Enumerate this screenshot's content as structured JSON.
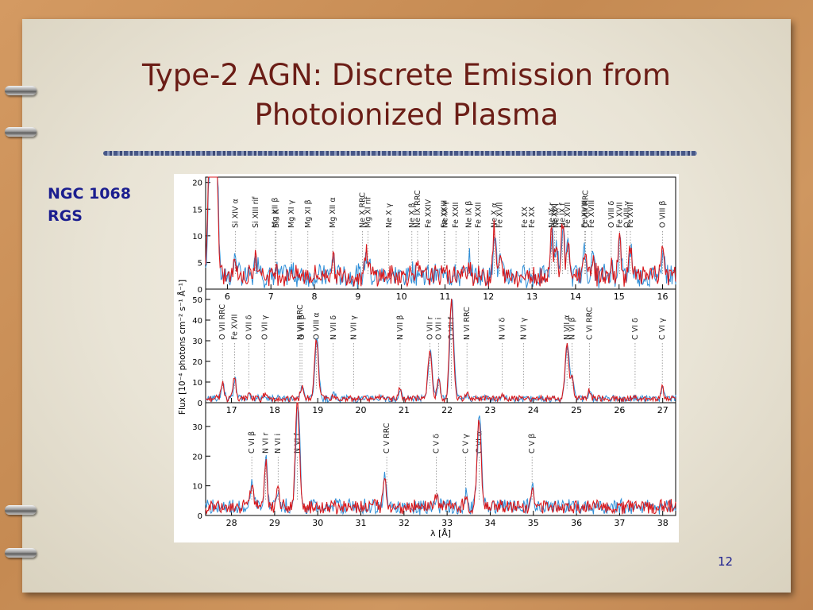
{
  "slide": {
    "title_line1": "Type-2 AGN: Discrete Emission from",
    "title_line2": "Photoionized Plasma",
    "label_line1": "NGC 1068",
    "label_line2": "RGS",
    "page_number": "12"
  },
  "colors": {
    "series_a": "#d8181c",
    "series_b": "#2f8fd8",
    "title": "#6b1d16",
    "label": "#1b1e8f"
  },
  "chart_data": {
    "type": "line",
    "ylabel": "Flux [10⁻⁴ photons cm⁻² s⁻¹ Å⁻¹]",
    "xlabel": "λ [Å]",
    "series_names": [],
    "panels": [
      {
        "xlim": [
          5.5,
          16.3
        ],
        "ylim": [
          0,
          21
        ],
        "xticks": [
          6,
          7,
          8,
          9,
          10,
          11,
          12,
          13,
          14,
          15,
          16
        ],
        "yticks": [
          0,
          5,
          10,
          15,
          20
        ],
        "lines": [
          {
            "label": "Si XIV α",
            "x": 6.18
          },
          {
            "label": "Si XIII rif",
            "x": 6.65
          },
          {
            "label": "Mg XII β",
            "x": 7.1
          },
          {
            "label": "Si I K",
            "x": 7.12
          },
          {
            "label": "Mg XI γ",
            "x": 7.47
          },
          {
            "label": "Mg XI β",
            "x": 7.85
          },
          {
            "label": "Mg XII α",
            "x": 8.42
          },
          {
            "label": "Ne X RRC",
            "x": 9.1
          },
          {
            "label": "Mg XI rif",
            "x": 9.23
          },
          {
            "label": "Ne X γ",
            "x": 9.71
          },
          {
            "label": "Ne X β",
            "x": 10.24
          },
          {
            "label": "Ne IX RRC",
            "x": 10.37
          },
          {
            "label": "Fe XXIV",
            "x": 10.62
          },
          {
            "label": "Fe XXIII",
            "x": 10.98
          },
          {
            "label": "Ne IX γ",
            "x": 11.0
          },
          {
            "label": "Fe XXII",
            "x": 11.25
          },
          {
            "label": "Ne IX β",
            "x": 11.55
          },
          {
            "label": "Fe XXII",
            "x": 11.77
          },
          {
            "label": "Ne X α",
            "x": 12.13
          },
          {
            "label": "Fe XVII",
            "x": 12.26
          },
          {
            "label": "Fe XX",
            "x": 12.83
          },
          {
            "label": "Fe XX",
            "x": 13.0
          },
          {
            "label": "Ne IX r",
            "x": 13.45
          },
          {
            "label": "Fe XIX",
            "x": 13.52
          },
          {
            "label": "Ne IX i",
            "x": 13.55
          },
          {
            "label": "Ne IX f",
            "x": 13.7
          },
          {
            "label": "Fe XVII",
            "x": 13.82
          },
          {
            "label": "Fe XVIII",
            "x": 14.21
          },
          {
            "label": "O VIII RRC",
            "x": 14.23
          },
          {
            "label": "Fe XVIII",
            "x": 14.37
          },
          {
            "label": "Fe XVII",
            "x": 15.01
          },
          {
            "label": "O VIII δ",
            "x": 14.82
          },
          {
            "label": "O VIII γ",
            "x": 15.18
          },
          {
            "label": "Fe XVII",
            "x": 15.26
          },
          {
            "label": "O VIII β",
            "x": 16.0
          }
        ],
        "peaks": [
          [
            5.6,
            22
          ],
          [
            5.65,
            22
          ],
          [
            5.7,
            22
          ],
          [
            5.75,
            18
          ],
          [
            6.18,
            4
          ],
          [
            6.65,
            3.2
          ],
          [
            6.74,
            2.5
          ],
          [
            7.1,
            1.5
          ],
          [
            7.47,
            1
          ],
          [
            8.42,
            3.5
          ],
          [
            9.17,
            3
          ],
          [
            9.23,
            3
          ],
          [
            10.24,
            1
          ],
          [
            10.37,
            1.2
          ],
          [
            11.0,
            2
          ],
          [
            11.55,
            2.8
          ],
          [
            12.13,
            9
          ],
          [
            12.26,
            3
          ],
          [
            13.45,
            8
          ],
          [
            13.55,
            6
          ],
          [
            13.7,
            10
          ],
          [
            13.82,
            6
          ],
          [
            14.2,
            5
          ],
          [
            14.4,
            4
          ],
          [
            14.82,
            1.5
          ],
          [
            15.01,
            7
          ],
          [
            15.26,
            5
          ],
          [
            16.0,
            6
          ]
        ],
        "baseline": 2.5
      },
      {
        "xlim": [
          16.4,
          27.3
        ],
        "ylim": [
          0,
          55
        ],
        "xticks": [
          17,
          18,
          19,
          20,
          21,
          22,
          23,
          24,
          25,
          26,
          27
        ],
        "yticks": [
          0,
          10,
          20,
          30,
          40,
          50
        ],
        "lines": [
          {
            "label": "O VII RRC",
            "x": 16.79
          },
          {
            "label": "Fe XVII",
            "x": 17.07
          },
          {
            "label": "O VII δ",
            "x": 17.4
          },
          {
            "label": "O VII γ",
            "x": 17.77
          },
          {
            "label": "N VII RRC",
            "x": 18.59
          },
          {
            "label": "O VII β",
            "x": 18.63
          },
          {
            "label": "O VIII α",
            "x": 18.97
          },
          {
            "label": "N VII δ",
            "x": 19.36
          },
          {
            "label": "N VII γ",
            "x": 19.83
          },
          {
            "label": "N VII β",
            "x": 20.91
          },
          {
            "label": "O VII r",
            "x": 21.6
          },
          {
            "label": "O VII i",
            "x": 21.8
          },
          {
            "label": "O VII f",
            "x": 22.1
          },
          {
            "label": "N VI RRC",
            "x": 22.46
          },
          {
            "label": "N VI δ",
            "x": 23.28
          },
          {
            "label": "N VI γ",
            "x": 23.77
          },
          {
            "label": "N VII α",
            "x": 24.78
          },
          {
            "label": "N VI β",
            "x": 24.9
          },
          {
            "label": "C VI RRC",
            "x": 25.3
          },
          {
            "label": "C VI δ",
            "x": 26.36
          },
          {
            "label": "C VI γ",
            "x": 26.99
          }
        ],
        "peaks": [
          [
            16.79,
            8
          ],
          [
            17.07,
            10
          ],
          [
            17.4,
            2
          ],
          [
            17.77,
            2
          ],
          [
            18.63,
            6
          ],
          [
            18.97,
            28
          ],
          [
            19.36,
            2
          ],
          [
            20.91,
            5
          ],
          [
            21.6,
            23
          ],
          [
            21.8,
            10
          ],
          [
            22.1,
            48
          ],
          [
            22.46,
            2
          ],
          [
            23.28,
            2
          ],
          [
            24.78,
            26
          ],
          [
            24.9,
            10
          ],
          [
            25.3,
            4
          ],
          [
            26.99,
            6
          ]
        ],
        "baseline": 2
      },
      {
        "xlim": [
          27.4,
          38.3
        ],
        "ylim": [
          0,
          38
        ],
        "xticks": [
          28,
          29,
          30,
          31,
          32,
          33,
          34,
          35,
          36,
          37,
          38
        ],
        "yticks": [
          0,
          10,
          20,
          30
        ],
        "lines": [
          {
            "label": "C VI β",
            "x": 28.47
          },
          {
            "label": "N VI r",
            "x": 28.79
          },
          {
            "label": "N VI i",
            "x": 29.08
          },
          {
            "label": "N VI f",
            "x": 29.53
          },
          {
            "label": "C V RRC",
            "x": 31.6
          },
          {
            "label": "C V δ",
            "x": 32.75
          },
          {
            "label": "C V γ",
            "x": 33.43
          },
          {
            "label": "C VI α",
            "x": 33.74
          },
          {
            "label": "C V β",
            "x": 34.97
          }
        ],
        "peaks": [
          [
            28.47,
            8
          ],
          [
            28.79,
            16
          ],
          [
            29.08,
            6
          ],
          [
            29.53,
            35
          ],
          [
            31.55,
            10
          ],
          [
            32.75,
            3
          ],
          [
            33.43,
            4
          ],
          [
            33.74,
            31
          ],
          [
            34.97,
            6
          ]
        ],
        "baseline": 3
      }
    ]
  }
}
